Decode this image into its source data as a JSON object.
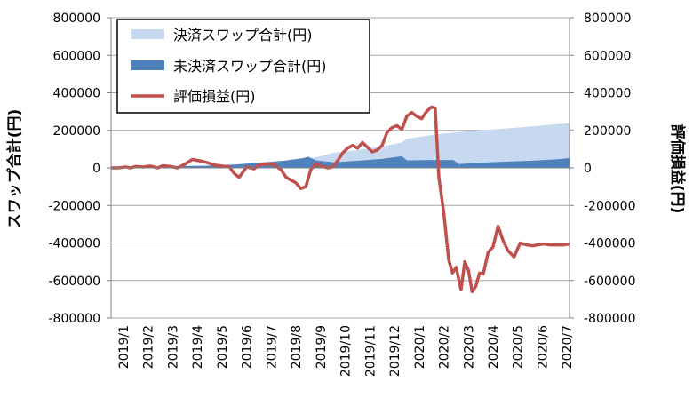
{
  "chart_data": {
    "type": "area",
    "title": "",
    "ylabel_left": "スワップ合計(円)",
    "ylabel_right": "評価損益(円)",
    "ylim": [
      -800000,
      800000
    ],
    "yticks": [
      "800000",
      "600000",
      "400000",
      "200000",
      "0",
      "-200000",
      "-400000",
      "-600000",
      "-800000"
    ],
    "x_tick_labels": [
      "2019/1",
      "2019/2",
      "2019/3",
      "2019/4",
      "2019/5",
      "2019/6",
      "2019/7",
      "2019/8",
      "2019/9",
      "2019/10",
      "2019/11",
      "2019/12",
      "2020/1",
      "2020/2",
      "2020/3",
      "2020/4",
      "2020/5",
      "2020/6",
      "2020/7"
    ],
    "x_range": [
      0,
      18.6
    ],
    "legend": [
      "決済スワップ合計(円)",
      "未決済スワップ合計(円)",
      "評価損益(円)"
    ],
    "legend_placement": "top-left",
    "grid": "horizontal",
    "colors": {
      "settled": "#C6D9F1",
      "unsettled": "#4F81BD",
      "pnl": "#C0504D",
      "gridline": "#A6A6A6"
    },
    "series": [
      {
        "name": "決済スワップ合計(円)",
        "kind": "area",
        "x": [
          0,
          1,
          2,
          3,
          4,
          5,
          6,
          7,
          7.8,
          8.5,
          9,
          10,
          11,
          11.8,
          12,
          13,
          14,
          15,
          16,
          17,
          18,
          18.6
        ],
        "values": [
          0,
          0,
          0,
          0,
          3000,
          12000,
          22000,
          32000,
          45000,
          62000,
          80000,
          95000,
          115000,
          135000,
          155000,
          175000,
          190000,
          200000,
          210000,
          220000,
          232000,
          238000
        ]
      },
      {
        "name": "未決済スワップ合計(円)",
        "kind": "area",
        "x": [
          0,
          1,
          2,
          3,
          4,
          5,
          6,
          7,
          7.8,
          8.0,
          8.3,
          9,
          10,
          11,
          11.8,
          12,
          13,
          13.9,
          14.1,
          15,
          16,
          17,
          18,
          18.6
        ],
        "values": [
          0,
          2000,
          5000,
          10000,
          12000,
          18000,
          28000,
          38000,
          52000,
          60000,
          40000,
          30000,
          38000,
          48000,
          62000,
          40000,
          42000,
          42000,
          20000,
          28000,
          33000,
          38000,
          45000,
          52000
        ]
      },
      {
        "name": "評価損益(円)",
        "kind": "line",
        "x": [
          0,
          0.3,
          0.6,
          0.8,
          1.0,
          1.3,
          1.6,
          1.9,
          2.1,
          2.4,
          2.7,
          3.0,
          3.3,
          3.6,
          3.9,
          4.2,
          4.5,
          4.8,
          5.0,
          5.2,
          5.5,
          5.8,
          6.0,
          6.3,
          6.6,
          6.9,
          7.1,
          7.3,
          7.5,
          7.7,
          7.9,
          8.1,
          8.3,
          8.5,
          8.8,
          9.0,
          9.2,
          9.4,
          9.6,
          9.8,
          10.0,
          10.2,
          10.4,
          10.6,
          10.8,
          11.0,
          11.2,
          11.4,
          11.6,
          11.8,
          12.0,
          12.2,
          12.4,
          12.6,
          12.8,
          13.0,
          13.15,
          13.3,
          13.5,
          13.7,
          13.85,
          14.0,
          14.2,
          14.35,
          14.5,
          14.65,
          14.8,
          14.95,
          15.1,
          15.3,
          15.5,
          15.7,
          15.9,
          16.1,
          16.35,
          16.6,
          16.85,
          17.1,
          17.3,
          17.55,
          17.8,
          18.1,
          18.35,
          18.6
        ],
        "values": [
          0,
          0,
          5000,
          0,
          8000,
          5000,
          10000,
          0,
          12000,
          8000,
          0,
          20000,
          45000,
          38000,
          28000,
          15000,
          10000,
          5000,
          -30000,
          -50000,
          5000,
          -5000,
          15000,
          20000,
          18000,
          -10000,
          -50000,
          -65000,
          -80000,
          -110000,
          -100000,
          -10000,
          20000,
          10000,
          0,
          5000,
          40000,
          80000,
          105000,
          120000,
          105000,
          135000,
          110000,
          85000,
          95000,
          120000,
          190000,
          215000,
          225000,
          205000,
          275000,
          295000,
          275000,
          262000,
          300000,
          325000,
          318000,
          -50000,
          -240000,
          -490000,
          -560000,
          -530000,
          -650000,
          -500000,
          -545000,
          -660000,
          -630000,
          -560000,
          -565000,
          -450000,
          -420000,
          -310000,
          -385000,
          -440000,
          -475000,
          -400000,
          -410000,
          -415000,
          -410000,
          -405000,
          -410000,
          -410000,
          -410000,
          -405000
        ]
      }
    ]
  }
}
